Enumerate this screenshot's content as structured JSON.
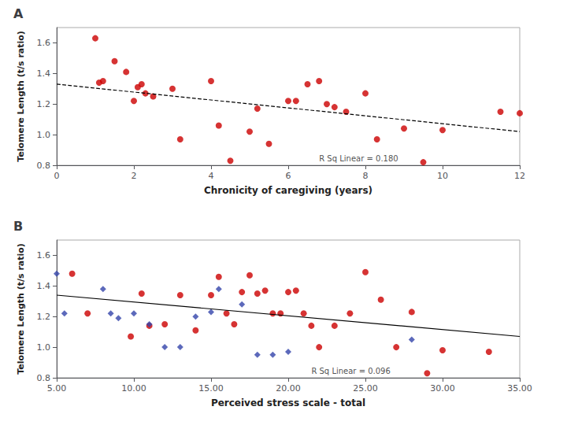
{
  "chart_data": [
    {
      "type": "scatter",
      "title": "A",
      "xlabel": "Chronicity of caregiving (years)",
      "ylabel": "Telomere Length (t/s ratio)",
      "xlim": [
        0,
        12
      ],
      "ylim": [
        0.8,
        1.7
      ],
      "xticks": [
        0,
        2,
        4,
        6,
        8,
        10,
        12
      ],
      "yticks": [
        0.8,
        {
          "value": 1.0,
          "label": "1.0"
        },
        1.2,
        1.4,
        1.6
      ],
      "grid": false,
      "series": [
        {
          "type": "scatter",
          "color": "#CC0000",
          "marker": "circle",
          "x": [
            1.0,
            1.1,
            1.2,
            1.5,
            1.8,
            2.0,
            2.1,
            2.2,
            2.3,
            2.5,
            3.0,
            3.2,
            4.0,
            4.2,
            4.5,
            5.0,
            5.2,
            5.5,
            6.0,
            6.2,
            6.5,
            6.8,
            7.0,
            7.2,
            7.5,
            8.0,
            8.3,
            9.0,
            9.5,
            10.0,
            11.5,
            12.0
          ],
          "values": [
            1.63,
            1.34,
            1.35,
            1.48,
            1.41,
            1.22,
            1.31,
            1.33,
            1.27,
            1.25,
            1.3,
            0.97,
            1.35,
            1.06,
            0.83,
            1.02,
            1.17,
            0.94,
            1.22,
            1.22,
            1.33,
            1.35,
            1.2,
            1.18,
            1.15,
            1.27,
            0.97,
            1.04,
            0.82,
            1.03,
            1.15,
            1.14
          ]
        },
        {
          "type": "line",
          "color": "black",
          "line_style": "dashed",
          "x": [
            0,
            12
          ],
          "values": [
            1.33,
            1.02
          ]
        }
      ],
      "annotations": [
        {
          "text": "R Sq Linear = 0.180",
          "x": 6.8,
          "y": 0.845
        }
      ]
    },
    {
      "type": "scatter",
      "title": "B",
      "xlabel": "Perceived stress scale - total",
      "ylabel": "Telomere Length (t/s ratio)",
      "xlim": [
        5.0,
        35.0
      ],
      "ylim": [
        0.8,
        1.7
      ],
      "xticks": [
        {
          "value": 5,
          "label": "5.00"
        },
        {
          "value": 10,
          "label": "10.00"
        },
        {
          "value": 15,
          "label": "15.00"
        },
        {
          "value": 20,
          "label": "20.00"
        },
        {
          "value": 25,
          "label": "25.00"
        },
        {
          "value": 30,
          "label": "30.00"
        },
        {
          "value": 35,
          "label": "35.00"
        }
      ],
      "yticks": [
        0.8,
        {
          "value": 1.0,
          "label": "1.0"
        },
        1.2,
        1.4,
        1.6
      ],
      "grid": false,
      "series": [
        {
          "type": "scatter",
          "color": "#CC0000",
          "marker": "circle",
          "x": [
            6.0,
            7.0,
            9.8,
            10.5,
            11.0,
            12.0,
            13.0,
            14.0,
            15.0,
            15.5,
            16.0,
            16.5,
            17.0,
            17.5,
            18.0,
            18.5,
            19.0,
            19.5,
            20.0,
            20.5,
            21.0,
            21.5,
            22.0,
            23.0,
            24.0,
            25.0,
            26.0,
            27.0,
            28.0,
            29.0,
            30.0,
            33.0
          ],
          "values": [
            1.48,
            1.22,
            1.07,
            1.35,
            1.14,
            1.15,
            1.34,
            1.11,
            1.34,
            1.46,
            1.22,
            1.15,
            1.36,
            1.47,
            1.35,
            1.37,
            1.22,
            1.22,
            1.36,
            1.37,
            1.22,
            1.14,
            1.0,
            1.14,
            1.22,
            1.49,
            1.31,
            1.0,
            1.23,
            0.83,
            0.98,
            0.97
          ]
        },
        {
          "type": "scatter",
          "color": "#3344AA",
          "marker": "diamond",
          "x": [
            5.0,
            5.5,
            8.0,
            8.5,
            9.0,
            10.0,
            11.0,
            12.0,
            13.0,
            14.0,
            15.0,
            15.5,
            17.0,
            18.0,
            19.0,
            20.0,
            28.0
          ],
          "values": [
            1.48,
            1.22,
            1.38,
            1.22,
            1.19,
            1.22,
            1.15,
            1.0,
            1.0,
            1.2,
            1.23,
            1.38,
            1.28,
            0.95,
            0.95,
            0.97,
            1.05
          ]
        },
        {
          "type": "line",
          "color": "black",
          "line_style": "solid",
          "x": [
            5.0,
            35.0
          ],
          "values": [
            1.34,
            1.07
          ]
        }
      ],
      "annotations": [
        {
          "text": "R Sq Linear = 0.096",
          "x": 21.5,
          "y": 0.845
        }
      ]
    }
  ]
}
